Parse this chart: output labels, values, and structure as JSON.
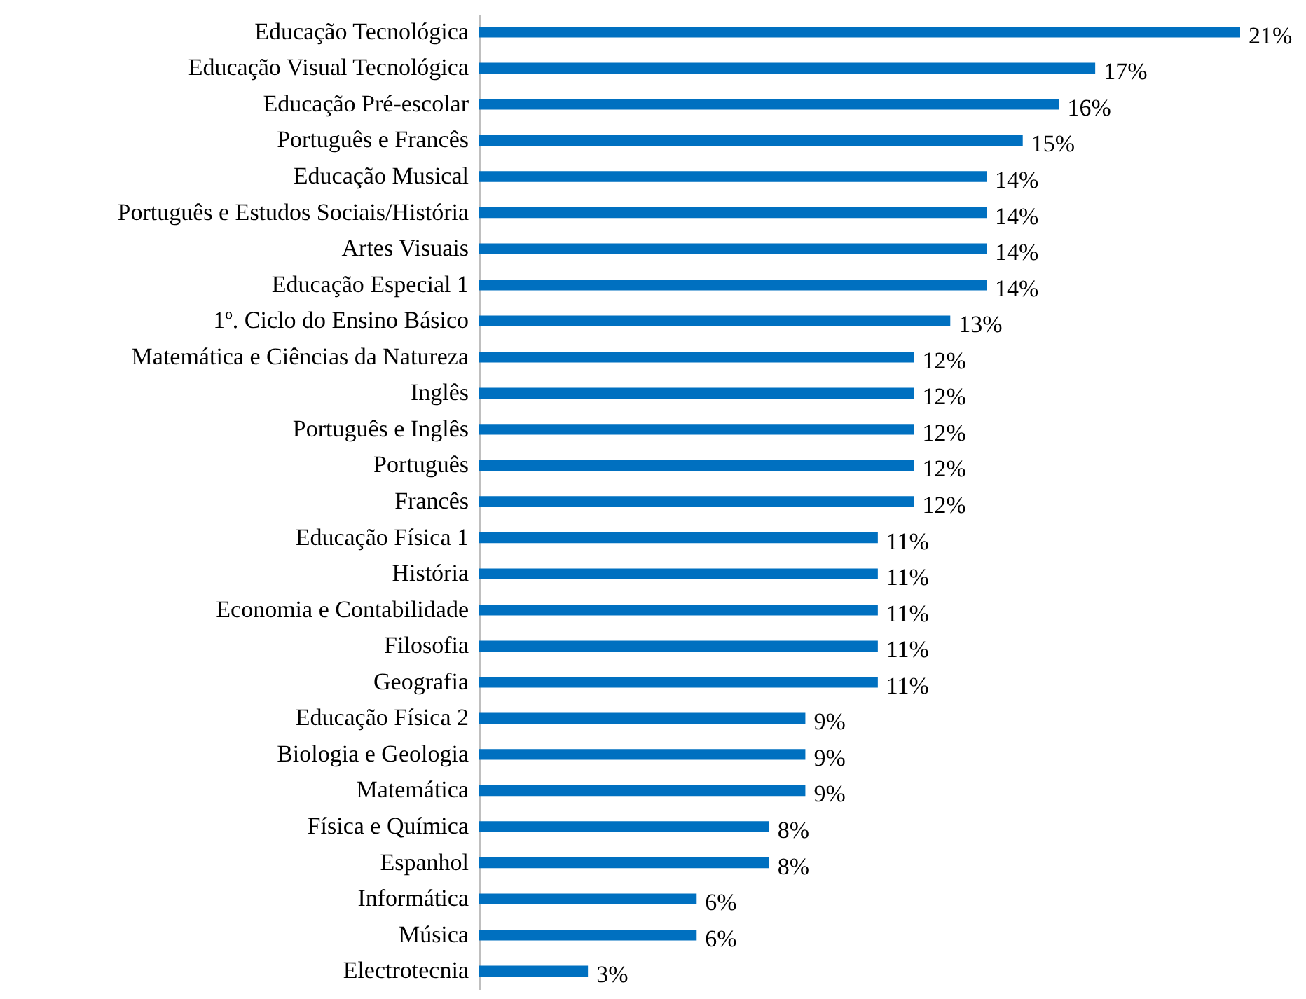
{
  "chart_data": {
    "type": "bar",
    "color": "#0070c0",
    "categories": [
      "Educação Tecnológica",
      "Educação Visual Tecnológica",
      "Educação Pré-escolar",
      "Português e Francês",
      "Educação Musical",
      "Português e Estudos Sociais/História",
      "Artes Visuais",
      "Educação Especial 1",
      "1º. Ciclo do Ensino Básico",
      "Matemática e Ciências da Natureza",
      "Inglês",
      "Português e Inglês",
      "Português",
      "Francês",
      "Educação Física 1",
      "História",
      "Economia e Contabilidade",
      "Filosofia",
      "Geografia",
      "Educação Física 2",
      "Biologia e Geologia",
      "Matemática",
      "Física e Química",
      "Espanhol",
      "Informática",
      "Música",
      "Electrotecnia"
    ],
    "values": [
      21,
      17,
      16,
      15,
      14,
      14,
      14,
      14,
      13,
      12,
      12,
      12,
      12,
      12,
      11,
      11,
      11,
      11,
      11,
      9,
      9,
      9,
      8,
      8,
      6,
      6,
      3
    ],
    "value_labels": [
      "21%",
      "17%",
      "16%",
      "15%",
      "14%",
      "14%",
      "14%",
      "14%",
      "13%",
      "12%",
      "12%",
      "12%",
      "12%",
      "12%",
      "11%",
      "11%",
      "11%",
      "11%",
      "11%",
      "9%",
      "9%",
      "9%",
      "8%",
      "8%",
      "6%",
      "6%",
      "3%"
    ],
    "orientation": "horizontal"
  }
}
